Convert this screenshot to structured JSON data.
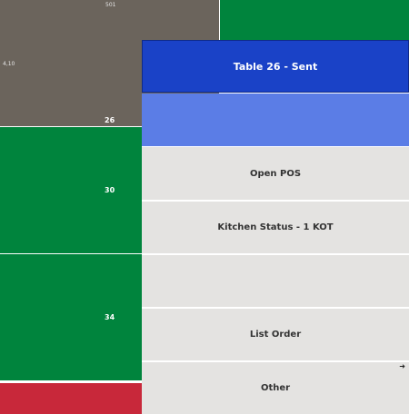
{
  "tiles": {
    "table_501": {
      "number": "501",
      "side_label": "4,10"
    },
    "table_26": {
      "number": "26"
    },
    "table_30": {
      "number": "30"
    },
    "table_34": {
      "number": "34"
    }
  },
  "menu": {
    "title": "Table 26 - Sent",
    "items": [
      {
        "label": "Open POS"
      },
      {
        "label": "Kitchen Status - 1 KOT"
      },
      {
        "label": ""
      },
      {
        "label": "List Order"
      },
      {
        "label": "Other"
      }
    ],
    "other_icon": "arrow-right-icon"
  },
  "colors": {
    "occupied": "#6b645c",
    "available": "#00843d",
    "alert": "#c8283a",
    "header": "#1a42c7",
    "banner": "#5b7de6",
    "item_bg": "#e4e3e1"
  }
}
